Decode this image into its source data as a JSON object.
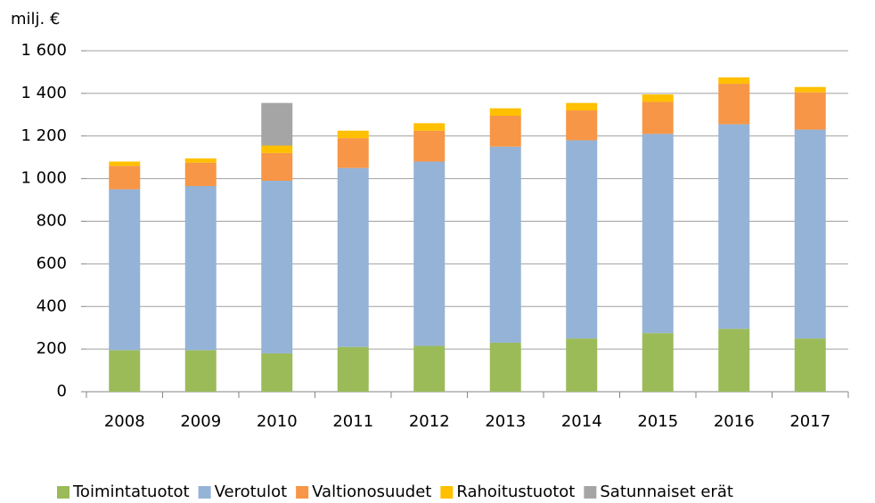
{
  "chart_data": {
    "type": "stacked_bar",
    "y_label": "milj. €",
    "categories": [
      "2008",
      "2009",
      "2010",
      "2011",
      "2012",
      "2013",
      "2014",
      "2015",
      "2016",
      "2017"
    ],
    "series": [
      {
        "name": "Toimintatuotot",
        "color": "#9bbb59",
        "values": [
          195,
          195,
          180,
          210,
          215,
          230,
          250,
          275,
          295,
          250
        ]
      },
      {
        "name": "Verotulot",
        "color": "#95b3d7",
        "values": [
          755,
          770,
          810,
          840,
          865,
          920,
          930,
          935,
          960,
          980
        ]
      },
      {
        "name": "Valtionosuudet",
        "color": "#f79646",
        "values": [
          110,
          110,
          130,
          140,
          145,
          145,
          140,
          150,
          190,
          175
        ]
      },
      {
        "name": "Rahoitustuotot",
        "color": "#ffc000",
        "values": [
          20,
          20,
          35,
          35,
          35,
          35,
          35,
          35,
          30,
          25
        ]
      },
      {
        "name": "Satunnaiset erät",
        "color": "#a5a5a5",
        "values": [
          null,
          null,
          200,
          null,
          null,
          null,
          null,
          null,
          null,
          null
        ]
      }
    ],
    "ylim": [
      0,
      1600
    ],
    "yticks": [
      0,
      200,
      400,
      600,
      800,
      {
        "value": 1000,
        "label": "1 000"
      },
      {
        "value": 1200,
        "label": "1 200"
      },
      {
        "value": 1400,
        "label": "1 400"
      },
      {
        "value": 1600,
        "label": "1 600"
      }
    ],
    "grid": true,
    "legend": "bottom"
  }
}
